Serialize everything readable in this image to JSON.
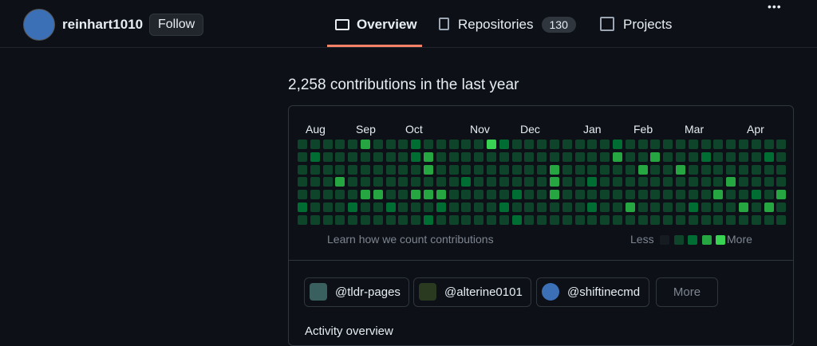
{
  "header": {
    "username": "reinhart1010",
    "follow": "Follow",
    "menu": "•••"
  },
  "nav": {
    "tabs": [
      {
        "label": "Overview"
      },
      {
        "label": "Repositories",
        "count": "130"
      },
      {
        "label": "Projects"
      }
    ]
  },
  "contributions": {
    "heading": "2,258 contributions in the last year",
    "months": [
      "Aug",
      "Sep",
      "Oct",
      "Nov",
      "Dec",
      "Jan",
      "Feb",
      "Mar",
      "Apr"
    ],
    "levels": [
      [
        1,
        1,
        1,
        1,
        1,
        3,
        1,
        1,
        1,
        2,
        1,
        1,
        1,
        1,
        1,
        4,
        2,
        1,
        1,
        1,
        1,
        1,
        1,
        1,
        1,
        2,
        1,
        1,
        1,
        1,
        1,
        1,
        1,
        1,
        1,
        1,
        1,
        1,
        1
      ],
      [
        1,
        2,
        1,
        1,
        1,
        1,
        1,
        1,
        1,
        2,
        3,
        1,
        1,
        1,
        1,
        1,
        1,
        1,
        1,
        1,
        1,
        1,
        1,
        1,
        1,
        3,
        1,
        1,
        3,
        1,
        1,
        1,
        2,
        1,
        1,
        1,
        1,
        2,
        1
      ],
      [
        1,
        1,
        1,
        1,
        1,
        1,
        1,
        1,
        1,
        1,
        3,
        1,
        1,
        1,
        1,
        1,
        1,
        1,
        1,
        1,
        3,
        1,
        1,
        1,
        1,
        1,
        1,
        3,
        1,
        1,
        3,
        1,
        1,
        1,
        1,
        1,
        1,
        1,
        1
      ],
      [
        1,
        1,
        1,
        3,
        1,
        1,
        1,
        1,
        1,
        1,
        1,
        1,
        1,
        2,
        1,
        1,
        1,
        1,
        1,
        1,
        3,
        1,
        1,
        2,
        1,
        1,
        1,
        1,
        1,
        1,
        1,
        1,
        1,
        1,
        3,
        1,
        1,
        1,
        1
      ],
      [
        1,
        1,
        1,
        1,
        1,
        3,
        3,
        1,
        1,
        3,
        3,
        3,
        1,
        1,
        1,
        1,
        1,
        2,
        1,
        1,
        3,
        1,
        1,
        1,
        1,
        1,
        1,
        1,
        1,
        1,
        1,
        1,
        1,
        3,
        1,
        1,
        2,
        1,
        3
      ],
      [
        2,
        1,
        1,
        1,
        2,
        1,
        1,
        2,
        1,
        1,
        1,
        2,
        1,
        1,
        1,
        1,
        2,
        1,
        1,
        1,
        1,
        1,
        1,
        2,
        1,
        1,
        3,
        1,
        1,
        1,
        1,
        2,
        1,
        1,
        1,
        3,
        1,
        3,
        1
      ],
      [
        1,
        1,
        1,
        1,
        1,
        1,
        1,
        1,
        1,
        1,
        2,
        1,
        1,
        1,
        1,
        1,
        1,
        2,
        1,
        1,
        1,
        1,
        1,
        1,
        1,
        1,
        1,
        1,
        1,
        1,
        1,
        1,
        1,
        1,
        1,
        1,
        1,
        1,
        1
      ]
    ],
    "learn": "Learn how we count contributions",
    "less": "Less",
    "more": "More"
  },
  "organizations": {
    "items": [
      "@tldr-pages",
      "@alterine0101",
      "@shiftinecmd"
    ],
    "more": "More"
  },
  "activity": {
    "heading": "Activity overview"
  }
}
